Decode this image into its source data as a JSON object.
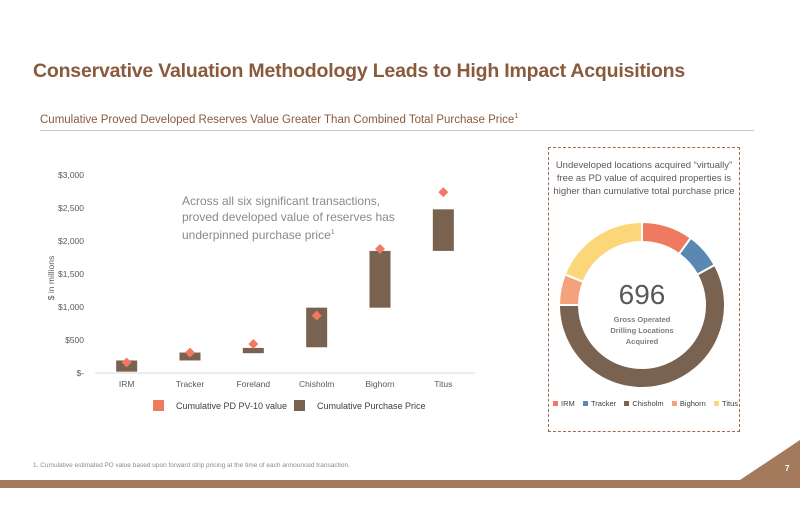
{
  "slide": {
    "title": "Conservative Valuation Methodology Leads to High Impact Acquisitions",
    "subtitle": "Cumulative Proved Developed Reserves Value Greater Than Combined Total Purchase Price",
    "subtitle_sup": "1",
    "annotation": "Across all six significant transactions, proved developed value of reserves has underpinned purchase price",
    "annotation_sup": "1",
    "footnote": "1.   Cumulative estimated PD value based upon forward strip pricing at the time of each announced transaction.",
    "page_number": "7"
  },
  "colors": {
    "brown": "#7a6250",
    "pd_marker": "#f07a60",
    "title_brown": "#8a5a3c",
    "band": "#a37a5c"
  },
  "chart_data": [
    {
      "type": "bar",
      "subtype": "floating-bar-with-markers",
      "ylabel": "$ in millions",
      "ylim": [
        0,
        3000
      ],
      "yticks": [
        0,
        500,
        1000,
        1500,
        2000,
        2500,
        3000
      ],
      "ytick_labels": [
        "$-",
        "$500",
        "$1,000",
        "$1,500",
        "$2,000",
        "$2,500",
        "$3,000"
      ],
      "categories": [
        "IRM",
        "Tracker",
        "Foreland",
        "Chisholm",
        "Bighorn",
        "Titus"
      ],
      "purchase_price_ranges": [
        [
          20,
          190
        ],
        [
          190,
          310
        ],
        [
          300,
          380
        ],
        [
          390,
          990
        ],
        [
          990,
          1850
        ],
        [
          1850,
          2480
        ]
      ],
      "pd_pv10_values": [
        160,
        310,
        440,
        870,
        1880,
        2740
      ],
      "legend": {
        "pd_label": "Cumulative PD PV-10 value",
        "price_label": "Cumulative Purchase Price"
      },
      "grid": false
    },
    {
      "type": "pie",
      "subtype": "donut",
      "note": "Undeveloped locations acquired “virtually” free as PD value of acquired properties is higher than cumulative total purchase price",
      "center_value": "696",
      "center_label": "Gross Operated Drilling Locations Acquired",
      "categories": [
        "IRM",
        "Tracker",
        "Chisholm",
        "Bighorn",
        "Titus"
      ],
      "values": [
        0.1,
        0.07,
        0.58,
        0.06,
        0.19
      ],
      "colors": [
        "#f07a60",
        "#5b87b3",
        "#7a6250",
        "#f4a27e",
        "#fbd77a"
      ]
    }
  ]
}
